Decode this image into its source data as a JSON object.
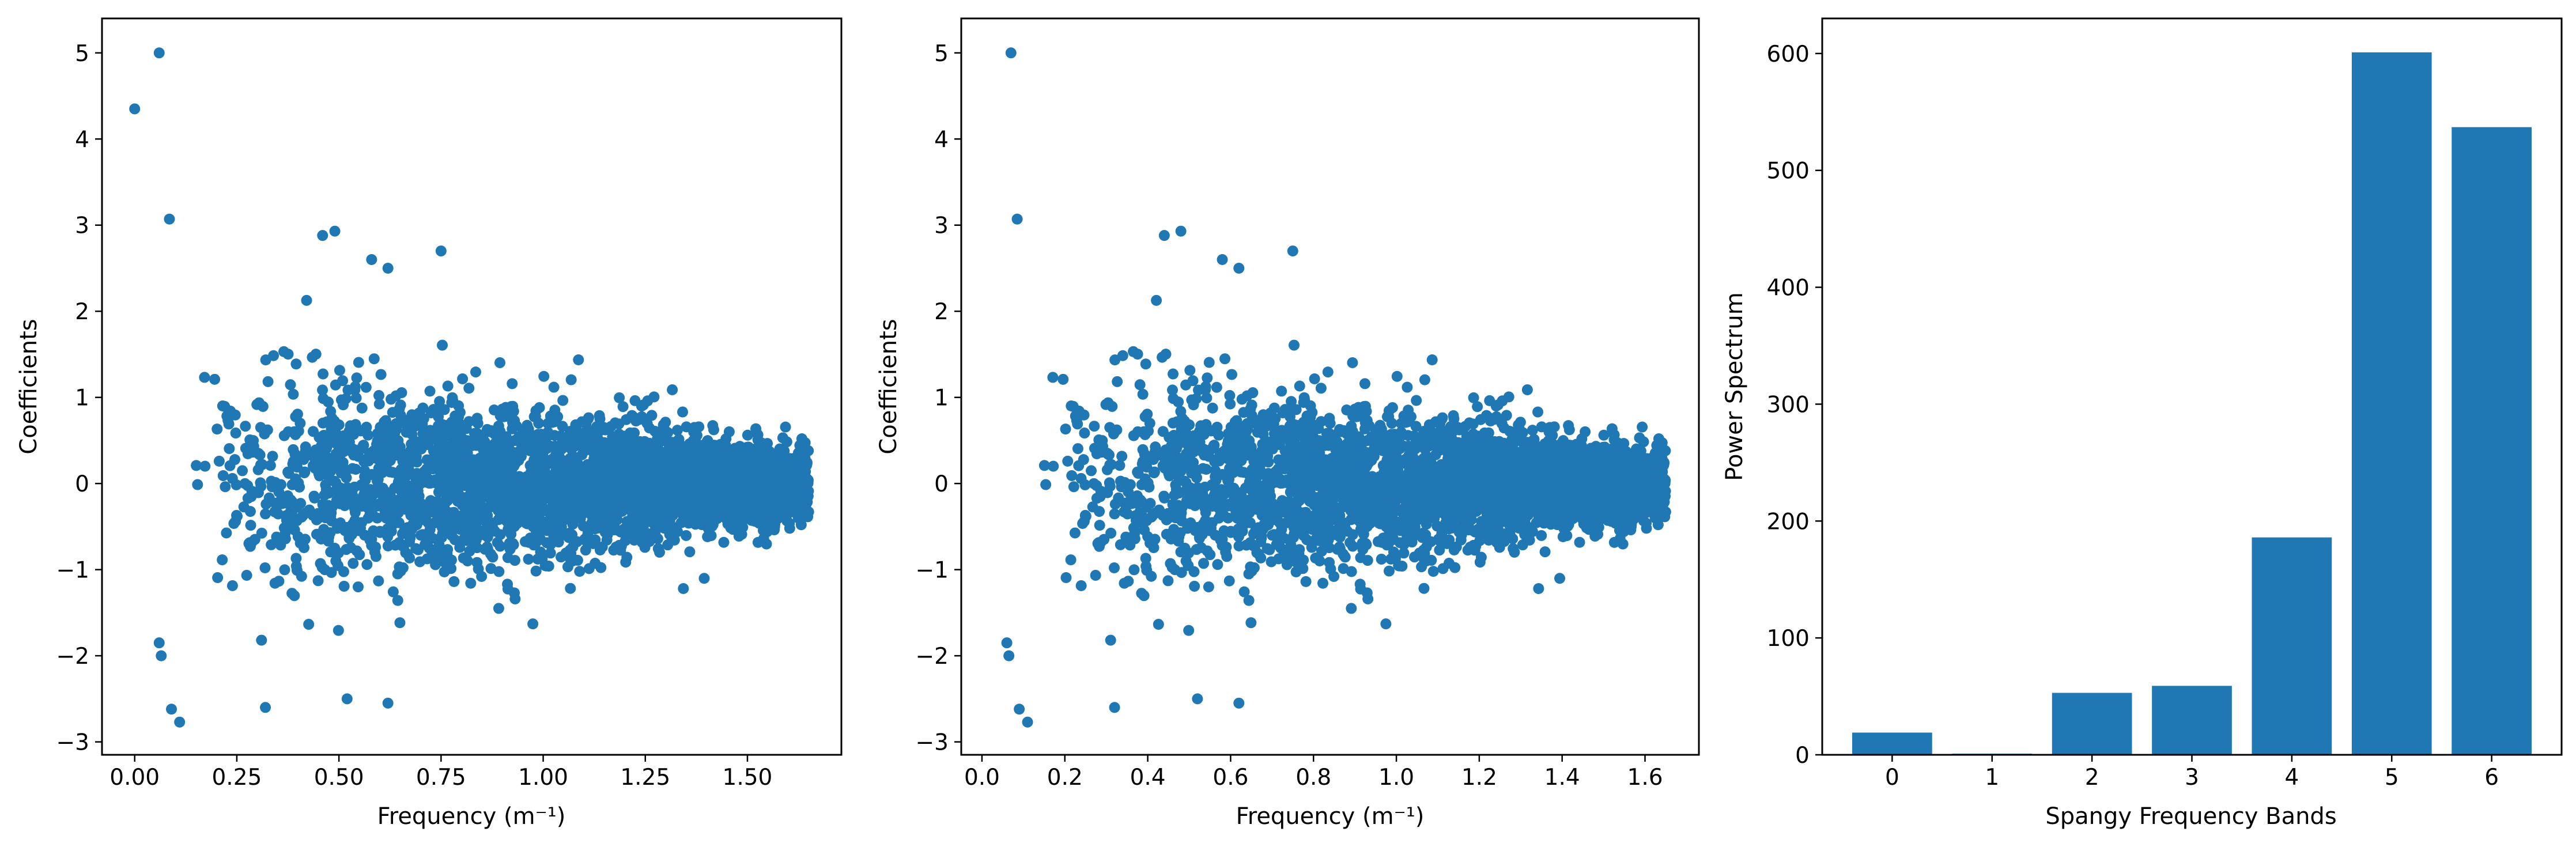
{
  "chart_data": [
    {
      "type": "scatter",
      "xlabel": "Frequency (m⁻¹)",
      "ylabel": "Coefficients",
      "xlim": [
        -0.08,
        1.73
      ],
      "ylim": [
        -3.15,
        5.4
      ],
      "xticks": [
        0.0,
        0.25,
        0.5,
        0.75,
        1.0,
        1.25,
        1.5
      ],
      "xtick_labels": [
        "0.00",
        "0.25",
        "0.50",
        "0.75",
        "1.00",
        "1.25",
        "1.50"
      ],
      "yticks": [
        -3,
        -2,
        -1,
        0,
        1,
        2,
        3,
        4,
        5
      ],
      "ytick_labels": [
        "−3",
        "−2",
        "−1",
        "0",
        "1",
        "2",
        "3",
        "4",
        "5"
      ],
      "color": "#1f77b4",
      "notable_points": [
        [
          0.0,
          4.35
        ],
        [
          0.06,
          5.0
        ],
        [
          0.085,
          3.07
        ],
        [
          0.09,
          -2.62
        ],
        [
          0.11,
          -2.77
        ],
        [
          0.06,
          -1.85
        ],
        [
          0.065,
          -2.0
        ],
        [
          0.46,
          2.88
        ],
        [
          0.49,
          2.93
        ],
        [
          0.58,
          2.6
        ],
        [
          0.62,
          2.5
        ],
        [
          0.75,
          2.7
        ],
        [
          0.32,
          -2.6
        ],
        [
          0.52,
          -2.5
        ],
        [
          0.62,
          -2.55
        ]
      ],
      "cloud": {
        "x_range": [
          0.0,
          1.65
        ],
        "initial_spread": 1.4,
        "final_spread": 0.33,
        "points": 3600
      }
    },
    {
      "type": "scatter",
      "xlabel": "Frequency (m⁻¹)",
      "ylabel": "Coefficients",
      "xlim": [
        -0.05,
        1.73
      ],
      "ylim": [
        -3.15,
        5.4
      ],
      "xticks": [
        0.0,
        0.2,
        0.4,
        0.6,
        0.8,
        1.0,
        1.2,
        1.4,
        1.6
      ],
      "xtick_labels": [
        "0.0",
        "0.2",
        "0.4",
        "0.6",
        "0.8",
        "1.0",
        "1.2",
        "1.4",
        "1.6"
      ],
      "yticks": [
        -3,
        -2,
        -1,
        0,
        1,
        2,
        3,
        4,
        5
      ],
      "ytick_labels": [
        "−3",
        "−2",
        "−1",
        "0",
        "1",
        "2",
        "3",
        "4",
        "5"
      ],
      "color": "#1f77b4",
      "notable_points": [
        [
          0.07,
          5.0
        ],
        [
          0.085,
          3.07
        ],
        [
          0.09,
          -2.62
        ],
        [
          0.11,
          -2.77
        ],
        [
          0.06,
          -1.85
        ],
        [
          0.065,
          -2.0
        ],
        [
          0.44,
          2.88
        ],
        [
          0.48,
          2.93
        ],
        [
          0.58,
          2.6
        ],
        [
          0.62,
          2.5
        ],
        [
          0.75,
          2.7
        ],
        [
          0.32,
          -2.6
        ],
        [
          0.52,
          -2.5
        ],
        [
          0.62,
          -2.55
        ]
      ],
      "cloud": {
        "x_range": [
          0.0,
          1.65
        ],
        "initial_spread": 1.4,
        "final_spread": 0.33,
        "points": 3600
      }
    },
    {
      "type": "bar",
      "xlabel": "Spangy Frequency Bands",
      "ylabel": "Power Spectrum",
      "categories": [
        "0",
        "1",
        "2",
        "3",
        "4",
        "5",
        "6"
      ],
      "values": [
        19,
        1,
        53,
        59,
        186,
        601,
        537
      ],
      "ylim": [
        0,
        630
      ],
      "yticks": [
        0,
        100,
        200,
        300,
        400,
        500,
        600
      ],
      "ytick_labels": [
        "0",
        "100",
        "200",
        "300",
        "400",
        "500",
        "600"
      ],
      "color": "#1f77b4"
    }
  ]
}
